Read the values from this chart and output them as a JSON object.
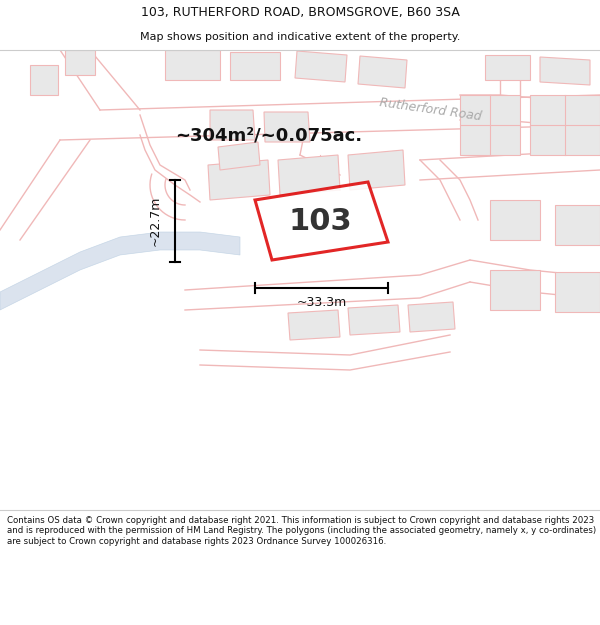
{
  "title_line1": "103, RUTHERFORD ROAD, BROMSGROVE, B60 3SA",
  "title_line2": "Map shows position and indicative extent of the property.",
  "footer_text": "Contains OS data © Crown copyright and database right 2021. This information is subject to Crown copyright and database rights 2023 and is reproduced with the permission of HM Land Registry. The polygons (including the associated geometry, namely x, y co-ordinates) are subject to Crown copyright and database rights 2023 Ordnance Survey 100026316.",
  "area_text": "~304m²/~0.075ac.",
  "property_number": "103",
  "dim_width": "~33.3m",
  "dim_height": "~22.7m",
  "bg_color": "#ffffff",
  "map_bg": "#ffffff",
  "road_label": "Rutherford Road",
  "highlight_edge": "#dd0000",
  "road_outline_color": "#f0b8b8",
  "building_fill": "#e8e8e8",
  "building_edge": "#f0b8b8",
  "road_label_color": "#aaaaaa"
}
